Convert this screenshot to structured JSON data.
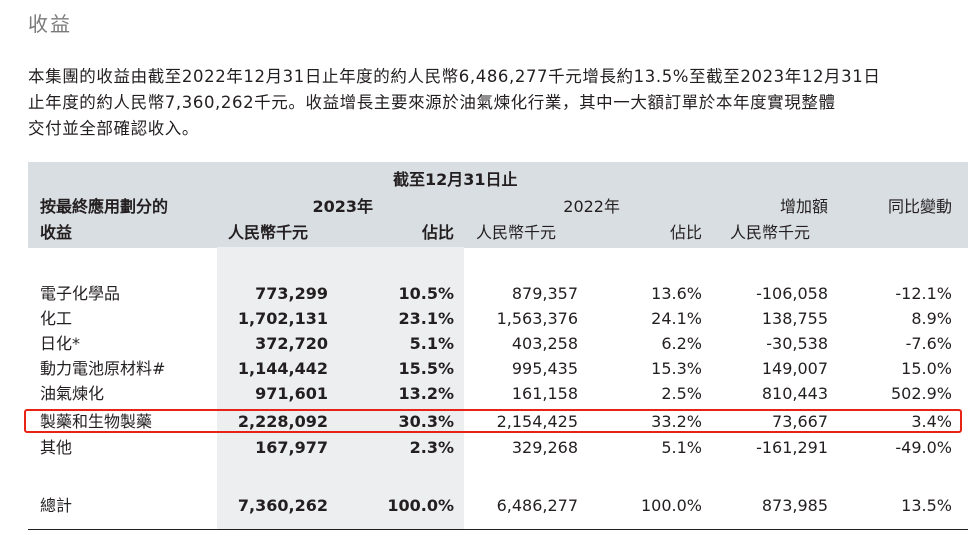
{
  "section_title": "收益",
  "paragraph": {
    "line1": "本集團的收益由截至2022年12月31日止年度的約人民幣6,486,277千元增長約13.5%至截至2023年12月31日",
    "line2": "止年度的約人民幣7,360,262千元。收益增長主要來源於油氣煉化行業，其中一大額訂單於本年度實現整體",
    "line3": "交付並全部確認收入。"
  },
  "table": {
    "period_header": "截至12月31日止",
    "first_col_header_line1": "按最終應用劃分的",
    "first_col_header_line2": "收益",
    "year_2023": "2023年",
    "year_2022": "2022年",
    "increase_header": "增加額",
    "yoy_header": "同比變動",
    "rmb_thousand": "人民幣千元",
    "share": "佔比",
    "rows": [
      {
        "category": "電子化學品",
        "v2023": "773,299",
        "s2023": "10.5%",
        "v2022": "879,357",
        "s2022": "13.6%",
        "increase": "-106,058",
        "yoy": "-12.1%"
      },
      {
        "category": "化工",
        "v2023": "1,702,131",
        "s2023": "23.1%",
        "v2022": "1,563,376",
        "s2022": "24.1%",
        "increase": "138,755",
        "yoy": "8.9%"
      },
      {
        "category": "日化*",
        "v2023": "372,720",
        "s2023": "5.1%",
        "v2022": "403,258",
        "s2022": "6.2%",
        "increase": "-30,538",
        "yoy": "-7.6%"
      },
      {
        "category": "動力電池原材料#",
        "v2023": "1,144,442",
        "s2023": "15.5%",
        "v2022": "995,435",
        "s2022": "15.3%",
        "increase": "149,007",
        "yoy": "15.0%"
      },
      {
        "category": "油氣煉化",
        "v2023": "971,601",
        "s2023": "13.2%",
        "v2022": "161,158",
        "s2022": "2.5%",
        "increase": "810,443",
        "yoy": "502.9%"
      },
      {
        "category": "製藥和生物製藥",
        "v2023": "2,228,092",
        "s2023": "30.3%",
        "v2022": "2,154,425",
        "s2022": "33.2%",
        "increase": "73,667",
        "yoy": "3.4%"
      },
      {
        "category": "其他",
        "v2023": "167,977",
        "s2023": "2.3%",
        "v2022": "329,268",
        "s2022": "5.1%",
        "increase": "-161,291",
        "yoy": "-49.0%"
      }
    ],
    "total": {
      "category": "總計",
      "v2023": "7,360,262",
      "s2023": "100.0%",
      "v2022": "6,486,277",
      "s2022": "100.0%",
      "increase": "873,985",
      "yoy": "13.5%"
    }
  },
  "colors": {
    "header_bg": "#d9dee2",
    "bold_col_bg": "#eceeef",
    "highlight": "#e62314",
    "title": "#7a7a7a"
  }
}
